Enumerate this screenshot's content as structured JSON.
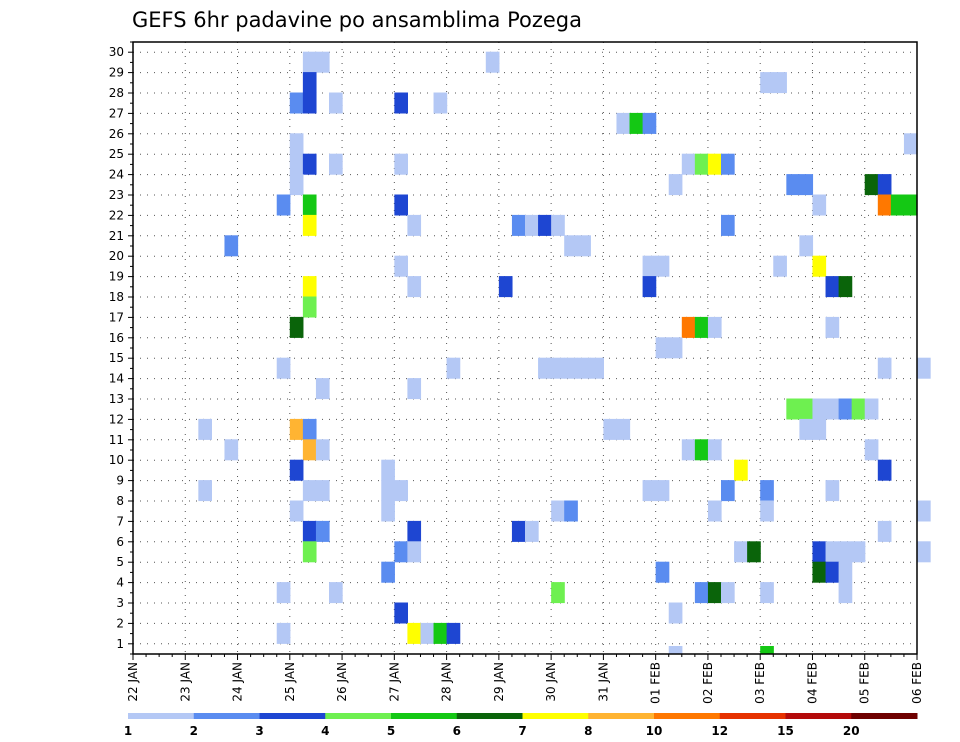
{
  "chart_data": {
    "type": "heatmap",
    "title": "GEFS 6hr padavine po ansamblima Pozega",
    "y_categories": [
      "1",
      "2",
      "3",
      "4",
      "5",
      "6",
      "7",
      "8",
      "9",
      "10",
      "11",
      "12",
      "13",
      "14",
      "15",
      "16",
      "17",
      "18",
      "19",
      "20",
      "21",
      "22",
      "23",
      "24",
      "25",
      "26",
      "27",
      "28",
      "29",
      "30"
    ],
    "ylim": [
      0,
      30
    ],
    "x_start": "2025-01-22",
    "x_ticks": [
      "22 JAN",
      "23 JAN",
      "24 JAN",
      "25 JAN",
      "26 JAN",
      "27 JAN",
      "28 JAN",
      "29 JAN",
      "30 JAN",
      "31 JAN",
      "01 FEB",
      "02 FEB",
      "03 FEB",
      "04 FEB",
      "05 FEB",
      "06 FEB"
    ],
    "step_hours": 6,
    "grid": true,
    "colorbar": {
      "labels": [
        "1",
        "2",
        "3",
        "4",
        "5",
        "6",
        "7",
        "8",
        "10",
        "12",
        "15",
        "20"
      ],
      "colors": [
        "#b4c8f5",
        "#5a8cf0",
        "#1e46d2",
        "#6ef050",
        "#14c814",
        "#0a640a",
        "#ffff00",
        "#ffb432",
        "#ff7800",
        "#e63200",
        "#b40a0a",
        "#6e0000"
      ]
    },
    "cells": [
      [
        30,
        13,
        0
      ],
      [
        30,
        14,
        0
      ],
      [
        30,
        27,
        0
      ],
      [
        29,
        13,
        2
      ],
      [
        29,
        48,
        0
      ],
      [
        29,
        49,
        0
      ],
      [
        28,
        12,
        1
      ],
      [
        28,
        13,
        2
      ],
      [
        28,
        15,
        0
      ],
      [
        28,
        20,
        2
      ],
      [
        28,
        23,
        0
      ],
      [
        27,
        37,
        0
      ],
      [
        27,
        38,
        4
      ],
      [
        27,
        39,
        1
      ],
      [
        26,
        12,
        0
      ],
      [
        26,
        59,
        0
      ],
      [
        25,
        12,
        0
      ],
      [
        25,
        13,
        2
      ],
      [
        25,
        15,
        0
      ],
      [
        25,
        20,
        0
      ],
      [
        25,
        42,
        0
      ],
      [
        25,
        43,
        3
      ],
      [
        25,
        44,
        6
      ],
      [
        25,
        45,
        1
      ],
      [
        24,
        12,
        0
      ],
      [
        24,
        41,
        0
      ],
      [
        24,
        50,
        1
      ],
      [
        24,
        51,
        1
      ],
      [
        24,
        56,
        5
      ],
      [
        24,
        57,
        2
      ],
      [
        23,
        11,
        1
      ],
      [
        23,
        13,
        4
      ],
      [
        23,
        20,
        2
      ],
      [
        23,
        52,
        0
      ],
      [
        23,
        57,
        8
      ],
      [
        23,
        58,
        4
      ],
      [
        23,
        59,
        4
      ],
      [
        22,
        13,
        6
      ],
      [
        22,
        21,
        0
      ],
      [
        22,
        29,
        1
      ],
      [
        22,
        30,
        0
      ],
      [
        22,
        31,
        2
      ],
      [
        22,
        32,
        0
      ],
      [
        22,
        45,
        1
      ],
      [
        21,
        7,
        1
      ],
      [
        21,
        33,
        0
      ],
      [
        21,
        34,
        0
      ],
      [
        21,
        51,
        0
      ],
      [
        20,
        20,
        0
      ],
      [
        20,
        39,
        0
      ],
      [
        20,
        40,
        0
      ],
      [
        20,
        49,
        0
      ],
      [
        20,
        52,
        6
      ],
      [
        19,
        13,
        6
      ],
      [
        19,
        21,
        0
      ],
      [
        19,
        28,
        2
      ],
      [
        19,
        39,
        2
      ],
      [
        19,
        53,
        2
      ],
      [
        19,
        54,
        5
      ],
      [
        18,
        13,
        3
      ],
      [
        17,
        12,
        5
      ],
      [
        17,
        42,
        8
      ],
      [
        17,
        43,
        4
      ],
      [
        17,
        44,
        0
      ],
      [
        17,
        53,
        0
      ],
      [
        16,
        40,
        0
      ],
      [
        16,
        41,
        0
      ],
      [
        15,
        11,
        0
      ],
      [
        15,
        24,
        0
      ],
      [
        15,
        31,
        0
      ],
      [
        15,
        32,
        0
      ],
      [
        15,
        33,
        0
      ],
      [
        15,
        34,
        0
      ],
      [
        15,
        35,
        0
      ],
      [
        15,
        57,
        0
      ],
      [
        15,
        60,
        0
      ],
      [
        14,
        14,
        0
      ],
      [
        14,
        21,
        0
      ],
      [
        13,
        50,
        3
      ],
      [
        13,
        51,
        3
      ],
      [
        13,
        52,
        0
      ],
      [
        13,
        53,
        0
      ],
      [
        13,
        54,
        1
      ],
      [
        13,
        55,
        3
      ],
      [
        13,
        56,
        0
      ],
      [
        12,
        5,
        0
      ],
      [
        12,
        12,
        7
      ],
      [
        12,
        13,
        1
      ],
      [
        12,
        36,
        0
      ],
      [
        12,
        37,
        0
      ],
      [
        12,
        51,
        0
      ],
      [
        12,
        52,
        0
      ],
      [
        11,
        7,
        0
      ],
      [
        11,
        13,
        7
      ],
      [
        11,
        14,
        0
      ],
      [
        11,
        42,
        0
      ],
      [
        11,
        43,
        4
      ],
      [
        11,
        44,
        0
      ],
      [
        11,
        56,
        0
      ],
      [
        10,
        12,
        2
      ],
      [
        10,
        19,
        0
      ],
      [
        10,
        46,
        6
      ],
      [
        10,
        57,
        2
      ],
      [
        9,
        5,
        0
      ],
      [
        9,
        13,
        0
      ],
      [
        9,
        14,
        0
      ],
      [
        9,
        19,
        0
      ],
      [
        9,
        20,
        0
      ],
      [
        9,
        39,
        0
      ],
      [
        9,
        40,
        0
      ],
      [
        9,
        45,
        1
      ],
      [
        9,
        48,
        1
      ],
      [
        9,
        53,
        0
      ],
      [
        8,
        12,
        0
      ],
      [
        8,
        19,
        0
      ],
      [
        8,
        32,
        0
      ],
      [
        8,
        33,
        1
      ],
      [
        8,
        44,
        0
      ],
      [
        8,
        48,
        0
      ],
      [
        8,
        60,
        0
      ],
      [
        7,
        13,
        2
      ],
      [
        7,
        14,
        1
      ],
      [
        7,
        21,
        2
      ],
      [
        7,
        29,
        2
      ],
      [
        7,
        30,
        0
      ],
      [
        7,
        57,
        0
      ],
      [
        6,
        13,
        3
      ],
      [
        6,
        20,
        1
      ],
      [
        6,
        21,
        0
      ],
      [
        6,
        46,
        0
      ],
      [
        6,
        47,
        5
      ],
      [
        6,
        52,
        2
      ],
      [
        6,
        53,
        0
      ],
      [
        6,
        54,
        0
      ],
      [
        6,
        55,
        0
      ],
      [
        6,
        60,
        0
      ],
      [
        5,
        19,
        1
      ],
      [
        5,
        40,
        1
      ],
      [
        5,
        52,
        5
      ],
      [
        5,
        53,
        2
      ],
      [
        5,
        54,
        0
      ],
      [
        4,
        11,
        0
      ],
      [
        4,
        15,
        0
      ],
      [
        4,
        32,
        3
      ],
      [
        4,
        43,
        1
      ],
      [
        4,
        44,
        5
      ],
      [
        4,
        45,
        0
      ],
      [
        4,
        48,
        0
      ],
      [
        4,
        54,
        0
      ],
      [
        3,
        20,
        2
      ],
      [
        3,
        41,
        0
      ],
      [
        2,
        11,
        0
      ],
      [
        2,
        21,
        6
      ],
      [
        2,
        22,
        0
      ],
      [
        2,
        23,
        4
      ],
      [
        2,
        24,
        2
      ]
    ],
    "bottom_cells": [
      [
        41,
        0
      ],
      [
        48,
        4
      ]
    ]
  }
}
